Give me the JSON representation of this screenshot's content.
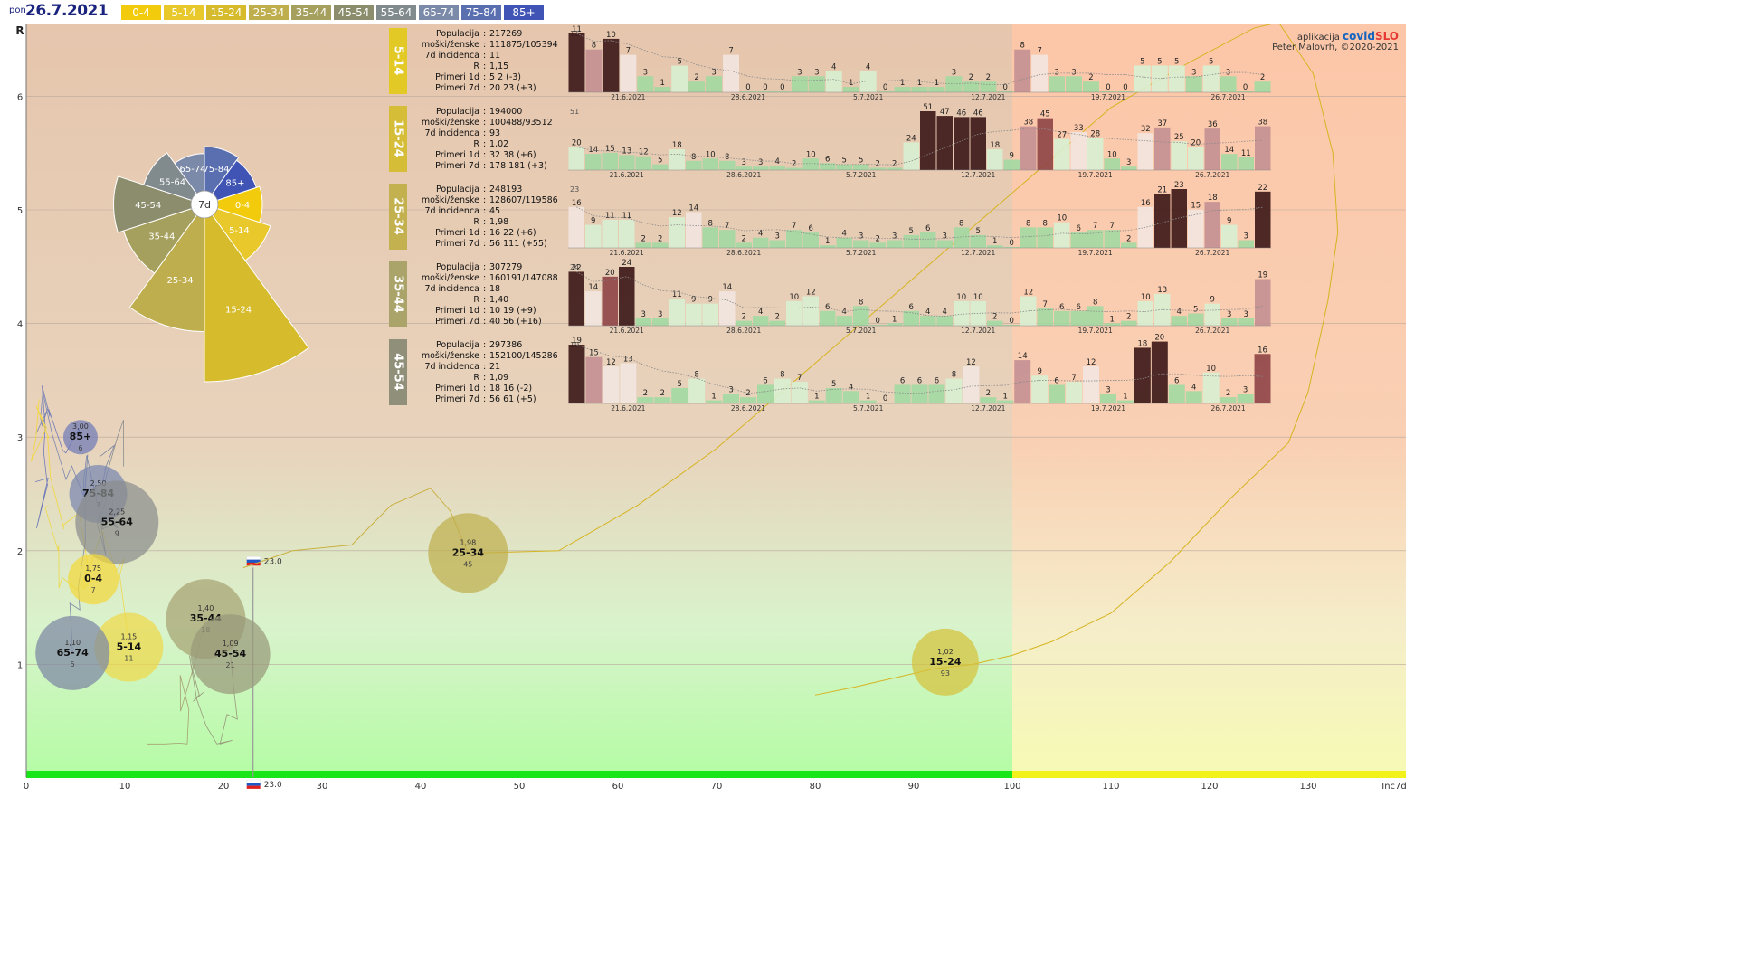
{
  "header": {
    "day": "pon",
    "date": "26.7.2021",
    "age_groups": [
      "0-4",
      "5-14",
      "15-24",
      "25-34",
      "35-44",
      "45-54",
      "55-64",
      "65-74",
      "75-84",
      "85+"
    ],
    "age_colors": [
      "#f2cc0c",
      "#e8c82a",
      "#d6bb2c",
      "#bfae4d",
      "#a6a05e",
      "#8c8d6d",
      "#818a8d",
      "#7b8aa8",
      "#5a6fb0",
      "#3f54b5"
    ]
  },
  "credit": {
    "app": "aplikacija",
    "brand1": "covid",
    "brand2": "SLO",
    "author": "Peter Malovrh, ©2020-2021"
  },
  "chart_data": [
    {
      "type": "scatter",
      "xlabel": "Inc7d",
      "ylabel": "R",
      "xlim": [
        0,
        140
      ],
      "ylim": [
        0,
        6.8
      ],
      "x_ticks": [
        0,
        10,
        20,
        30,
        40,
        50,
        60,
        70,
        80,
        90,
        100,
        110,
        120,
        130
      ],
      "y_ticks": [
        1,
        2,
        3,
        4,
        5,
        6
      ],
      "slovenia_marker": {
        "value": "23.0",
        "x": 23.0,
        "R": 1.9
      },
      "bubbles": [
        {
          "group": "85+",
          "R_label": "3,00",
          "label": "85+",
          "inc": "6",
          "x": 5.5,
          "y": 3.0,
          "color": "#6f7ab8"
        },
        {
          "group": "75-84",
          "R_label": "2,50",
          "label": "75-84",
          "inc": "7",
          "x": 7.3,
          "y": 2.5,
          "color": "#7986b0"
        },
        {
          "group": "55-64",
          "R_label": "2,25",
          "label": "55-64",
          "inc": "9",
          "x": 9.2,
          "y": 2.25,
          "color": "#8a8d8e"
        },
        {
          "group": "0-4",
          "R_label": "1,75",
          "label": "0-4",
          "inc": "7",
          "x": 6.8,
          "y": 1.75,
          "color": "#f2d83a"
        },
        {
          "group": "25-34",
          "R_label": "1,98",
          "label": "25-34",
          "inc": "45",
          "x": 44.8,
          "y": 1.98,
          "color": "#bfae4d"
        },
        {
          "group": "35-44",
          "R_label": "1,40",
          "label": "35-44",
          "inc": "18",
          "x": 18.2,
          "y": 1.4,
          "color": "#a6a272"
        },
        {
          "group": "5-14",
          "R_label": "1,15",
          "label": "5-14",
          "inc": "11",
          "x": 10.4,
          "y": 1.15,
          "color": "#eed84a"
        },
        {
          "group": "65-74",
          "R_label": "1,10",
          "label": "65-74",
          "inc": "5",
          "x": 4.7,
          "y": 1.1,
          "color": "#7d87a4"
        },
        {
          "group": "45-54",
          "R_label": "1,09",
          "label": "45-54",
          "inc": "21",
          "x": 20.7,
          "y": 1.09,
          "color": "#98987a"
        },
        {
          "group": "15-24",
          "R_label": "1,02",
          "label": "15-24",
          "inc": "93",
          "x": 93.2,
          "y": 1.02,
          "color": "#d6c23c"
        }
      ],
      "trail_15_24": [
        [
          80,
          0.73
        ],
        [
          84,
          0.8
        ],
        [
          88,
          0.88
        ],
        [
          92,
          0.96
        ],
        [
          96,
          1.0
        ],
        [
          100,
          1.08
        ],
        [
          104,
          1.2
        ],
        [
          110,
          1.45
        ],
        [
          116,
          1.9
        ],
        [
          122,
          2.45
        ],
        [
          128,
          2.95
        ],
        [
          130,
          3.4
        ],
        [
          132,
          4.2
        ],
        [
          133,
          4.8
        ],
        [
          132.5,
          5.5
        ],
        [
          130.5,
          6.2
        ],
        [
          127,
          6.65
        ],
        [
          124.5,
          6.6
        ],
        [
          118,
          6.3
        ],
        [
          110,
          5.9
        ],
        [
          102,
          5.3
        ],
        [
          94,
          4.7
        ],
        [
          86,
          4.1
        ],
        [
          78,
          3.5
        ],
        [
          70,
          2.9
        ],
        [
          62,
          2.4
        ],
        [
          54,
          2.0
        ],
        [
          46,
          1.98
        ]
      ],
      "trail_25_34": [
        [
          22,
          1.85
        ],
        [
          27,
          2.0
        ],
        [
          33,
          2.05
        ],
        [
          37,
          2.4
        ],
        [
          41,
          2.55
        ],
        [
          43,
          2.35
        ],
        [
          44.8,
          1.98
        ]
      ]
    },
    {
      "type": "pie",
      "title": "7d",
      "values": [
        7,
        11,
        93,
        45,
        18,
        21,
        9,
        5,
        7,
        6
      ],
      "labels": [
        "0-4",
        "5-14",
        "15-24",
        "25-34",
        "35-44",
        "45-54",
        "55-64",
        "65-74",
        "75-84",
        "85+"
      ]
    },
    {
      "type": "bar",
      "title": "5-14",
      "info": [
        {
          "k": "Populacija",
          "v": "217269"
        },
        {
          "k": "moški/ženske",
          "v": "111875/105394"
        },
        {
          "k": "7d incidenca",
          "v": "11"
        },
        {
          "k": "R",
          "v": "1,15"
        },
        {
          "k": "Primeri 1d",
          "v": "5 2 (-3)"
        },
        {
          "k": "Primeri 7d",
          "v": "20 23 (+3)"
        }
      ],
      "ymax_label": "11",
      "x_ticks": [
        "21.6.2021",
        "28.6.2021",
        "5.7.2021",
        "12.7.2021",
        "19.7.2021",
        "26.7.2021"
      ],
      "values": [
        11,
        8,
        10,
        7,
        3,
        1,
        5,
        2,
        3,
        7,
        0,
        0,
        0,
        3,
        3,
        4,
        1,
        4,
        0,
        1,
        1,
        1,
        3,
        2,
        2,
        0,
        8,
        7,
        3,
        3,
        2,
        0,
        0,
        5,
        5,
        5,
        3,
        5,
        3,
        0,
        2
      ]
    },
    {
      "type": "bar",
      "title": "15-24",
      "info": [
        {
          "k": "Populacija",
          "v": "194000"
        },
        {
          "k": "moški/ženske",
          "v": "100488/93512"
        },
        {
          "k": "7d incidenca",
          "v": "93"
        },
        {
          "k": "R",
          "v": "1,02"
        },
        {
          "k": "Primeri 1d",
          "v": "32 38 (+6)"
        },
        {
          "k": "Primeri 7d",
          "v": "178 181 (+3)"
        }
      ],
      "ymax_label": "51",
      "x_ticks": [
        "21.6.2021",
        "28.6.2021",
        "5.7.2021",
        "12.7.2021",
        "19.7.2021",
        "26.7.2021"
      ],
      "values": [
        20,
        14,
        15,
        13,
        12,
        5,
        18,
        8,
        10,
        8,
        3,
        3,
        4,
        2,
        10,
        6,
        5,
        5,
        2,
        2,
        24,
        51,
        47,
        46,
        46,
        18,
        9,
        38,
        45,
        27,
        33,
        28,
        10,
        3,
        32,
        37,
        25,
        20,
        36,
        14,
        11,
        38
      ]
    },
    {
      "type": "bar",
      "title": "25-34",
      "info": [
        {
          "k": "Populacija",
          "v": "248193"
        },
        {
          "k": "moški/ženske",
          "v": "128607/119586"
        },
        {
          "k": "7d incidenca",
          "v": "45"
        },
        {
          "k": "R",
          "v": "1,98"
        },
        {
          "k": "Primeri 1d",
          "v": "16 22 (+6)"
        },
        {
          "k": "Primeri 7d",
          "v": "56 111 (+55)"
        }
      ],
      "ymax_label": "23",
      "x_ticks": [
        "21.6.2021",
        "28.6.2021",
        "5.7.2021",
        "12.7.2021",
        "19.7.2021",
        "26.7.2021"
      ],
      "values": [
        16,
        9,
        11,
        11,
        2,
        2,
        12,
        14,
        8,
        7,
        2,
        4,
        3,
        7,
        6,
        1,
        4,
        3,
        2,
        3,
        5,
        6,
        3,
        8,
        5,
        1,
        0,
        8,
        8,
        10,
        6,
        7,
        7,
        2,
        16,
        21,
        23,
        15,
        18,
        9,
        3,
        22
      ]
    },
    {
      "type": "bar",
      "title": "35-44",
      "info": [
        {
          "k": "Populacija",
          "v": "307279"
        },
        {
          "k": "moški/ženske",
          "v": "160191/147088"
        },
        {
          "k": "7d incidenca",
          "v": "18"
        },
        {
          "k": "R",
          "v": "1,40"
        },
        {
          "k": "Primeri 1d",
          "v": "10 19 (+9)"
        },
        {
          "k": "Primeri 7d",
          "v": "40 56 (+16)"
        }
      ],
      "ymax_label": "24",
      "x_ticks": [
        "21.6.2021",
        "28.6.2021",
        "5.7.2021",
        "12.7.2021",
        "19.7.2021",
        "26.7.2021"
      ],
      "values": [
        22,
        14,
        20,
        24,
        3,
        3,
        11,
        9,
        9,
        14,
        2,
        4,
        2,
        10,
        12,
        6,
        4,
        8,
        0,
        1,
        6,
        4,
        4,
        10,
        10,
        2,
        0,
        12,
        7,
        6,
        6,
        8,
        1,
        2,
        10,
        13,
        4,
        5,
        9,
        3,
        3,
        19
      ]
    },
    {
      "type": "bar",
      "title": "45-54",
      "info": [
        {
          "k": "Populacija",
          "v": "297386"
        },
        {
          "k": "moški/ženske",
          "v": "152100/145286"
        },
        {
          "k": "7d incidenca",
          "v": "21"
        },
        {
          "k": "R",
          "v": "1,09"
        },
        {
          "k": "Primeri 1d",
          "v": "18 16 (-2)"
        },
        {
          "k": "Primeri 7d",
          "v": "56 61 (+5)"
        }
      ],
      "ymax_label": "19",
      "x_ticks": [
        "21.6.2021",
        "28.6.2021",
        "5.7.2021",
        "12.7.2021",
        "19.7.2021",
        "26.7.2021"
      ],
      "values": [
        19,
        15,
        12,
        13,
        2,
        2,
        5,
        8,
        1,
        3,
        2,
        6,
        8,
        7,
        1,
        5,
        4,
        1,
        0,
        6,
        6,
        6,
        8,
        12,
        2,
        1,
        14,
        9,
        6,
        7,
        12,
        3,
        1,
        18,
        20,
        6,
        4,
        10,
        2,
        3,
        16
      ]
    }
  ]
}
